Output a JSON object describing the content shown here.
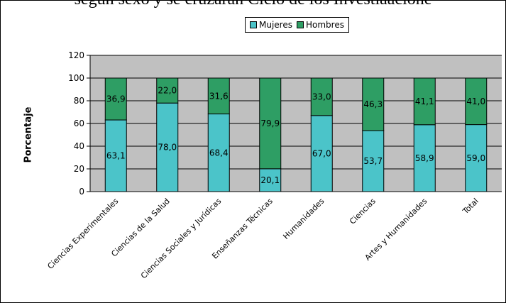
{
  "header": {
    "cut_title": "según sexo y se cruzaran Ciclo de los Investiaacione"
  },
  "chart_data": {
    "type": "bar",
    "stacked": true,
    "title": "",
    "xlabel": "",
    "ylabel": "Porcentaje",
    "ylim": [
      0,
      120
    ],
    "yticks": [
      0,
      20,
      40,
      60,
      80,
      100,
      120
    ],
    "grid": true,
    "legend_position": "top",
    "categories": [
      "Ciencias Experimentales",
      "Ciencias de la Salud",
      "Ciencias Sociales y Jurídicas",
      "Enseñanzas Técnicas",
      "Humanidades",
      "Ciencias",
      "Artes y Humanidades",
      "Total"
    ],
    "series": [
      {
        "name": "Mujeres",
        "color": "#4BC4C9",
        "values": [
          63.1,
          78.0,
          68.4,
          20.1,
          67.0,
          53.7,
          58.9,
          59.0
        ],
        "labels": [
          "63,1",
          "78,0",
          "68,4",
          "20,1",
          "67,0",
          "53,7",
          "58,9",
          "59,0"
        ]
      },
      {
        "name": "Hombres",
        "color": "#2E9E64",
        "values": [
          36.9,
          22.0,
          31.6,
          79.9,
          33.0,
          46.3,
          41.1,
          41.0
        ],
        "labels": [
          "36,9",
          "22,0",
          "31,6",
          "79,9",
          "33,0",
          "46,3",
          "41,1",
          "41,0"
        ]
      }
    ],
    "colors": {
      "plot_background": "#C0C0C0",
      "gridline": "#000000"
    }
  }
}
